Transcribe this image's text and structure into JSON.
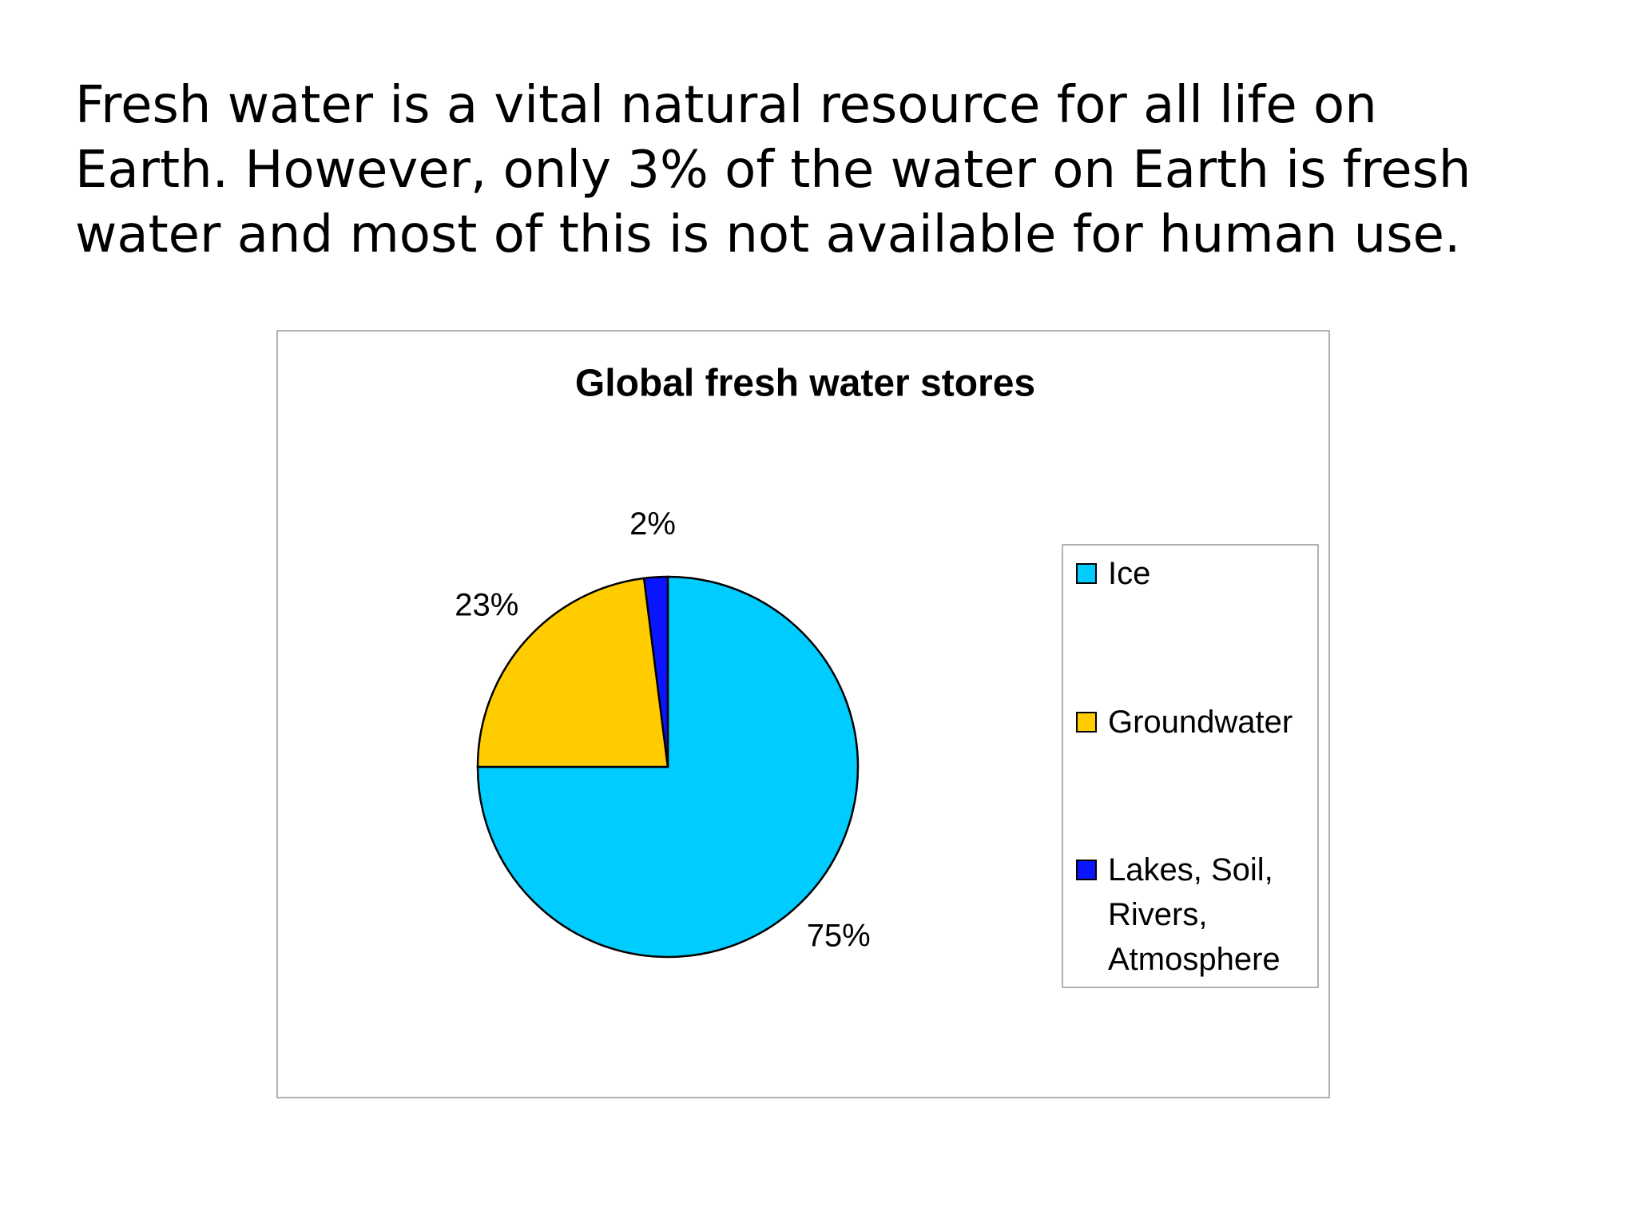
{
  "paragraph": [
    "Fresh water is a vital natural resource for all life on",
    "Earth. However, only 3% of the water on Earth is fresh",
    "water and most of this is not available for human use."
  ],
  "chart_data": {
    "type": "pie",
    "title": "Global fresh water stores",
    "categories": [
      "Ice",
      "Groundwater",
      "Lakes, Soil, Rivers, Atmosphere"
    ],
    "values": [
      75,
      23,
      2
    ],
    "value_labels": [
      "75%",
      "23%",
      "2%"
    ],
    "colors": [
      "#00ccff",
      "#ffcc00",
      "#0a14ff"
    ],
    "legend": "right"
  }
}
